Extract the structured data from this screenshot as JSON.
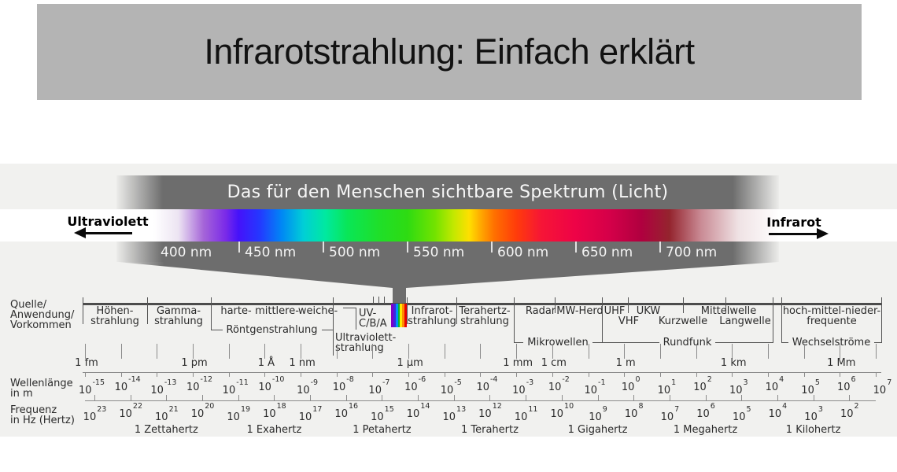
{
  "title": "Infrarotstrahlung: Einfach erklärt",
  "visible_spectrum": {
    "banner": "Das für den Menschen sichtbare Spektrum (Licht)",
    "uv_label": "Ultraviolett",
    "ir_label": "Infrarot",
    "nm_labels": [
      "400 nm",
      "450 nm",
      "500 nm",
      "550 nm",
      "600 nm",
      "650 nm",
      "700 nm"
    ]
  },
  "axis": {
    "side_label": [
      "Quelle/",
      "Anwendung/",
      "Vorkommen"
    ],
    "blocks": {
      "hoehen": [
        "Höhen-",
        "strahlung"
      ],
      "gamma": [
        "Gamma-",
        "strahlung"
      ],
      "roentgen_types": [
        "harte-",
        "mittlere-",
        "weiche-"
      ],
      "roentgen_bracket": "Röntgenstrahlung",
      "uv_short": [
        "UV-",
        "C/B/A"
      ],
      "uv_long": [
        "Ultraviolett-",
        "strahlung"
      ],
      "infrarot": [
        "Infrarot-",
        "strahlung"
      ],
      "terahertz": [
        "Terahertz-",
        "strahlung"
      ],
      "mikro_row": [
        "Radar",
        "MW-Herd"
      ],
      "mikro_bracket": "Mikrowellen",
      "funk_row1": [
        "UHF",
        "UKW",
        "Mittelwelle"
      ],
      "funk_row2": [
        "VHF",
        "Kurzwelle",
        "Langwelle"
      ],
      "funk_bracket": "Rundfunk",
      "nieder": [
        "hoch-mittel-nieder-",
        "frequente"
      ],
      "nieder_bracket": "Wechselströme"
    }
  },
  "scales": {
    "wavelength_side_label": [
      "Wellenlänge",
      "in m"
    ],
    "frequency_side_label": [
      "Frequenz",
      "in Hz (Hertz)"
    ],
    "power_base": "10",
    "wavelength_exponents": [
      -15,
      -14,
      -13,
      -12,
      -11,
      -10,
      -9,
      -8,
      -7,
      -6,
      -5,
      -4,
      -3,
      -2,
      -1,
      0,
      1,
      2,
      3,
      4,
      5,
      6,
      7
    ],
    "frequency_exponents": [
      23,
      22,
      21,
      20,
      19,
      18,
      17,
      16,
      15,
      14,
      13,
      12,
      11,
      10,
      9,
      8,
      7,
      6,
      5,
      4,
      3,
      2
    ],
    "named_wavelengths": [
      {
        "label": "1 fm",
        "exp": -15
      },
      {
        "label": "1 pm",
        "exp": -12
      },
      {
        "label": "1 Å",
        "exp": -10
      },
      {
        "label": "1 nm",
        "exp": -9
      },
      {
        "label": "1 µm",
        "exp": -6
      },
      {
        "label": "1 mm",
        "exp": -3
      },
      {
        "label": "1 cm",
        "exp": -2
      },
      {
        "label": "1 m",
        "exp": 0
      },
      {
        "label": "1 km",
        "exp": 3
      },
      {
        "label": "1 Mm",
        "exp": 6
      }
    ],
    "named_frequencies": [
      {
        "label": "1 Zettahertz",
        "exp": 21
      },
      {
        "label": "1 Exahertz",
        "exp": 18
      },
      {
        "label": "1 Petahertz",
        "exp": 15
      },
      {
        "label": "1 Terahertz",
        "exp": 12
      },
      {
        "label": "1 Gigahertz",
        "exp": 9
      },
      {
        "label": "1 Megahertz",
        "exp": 6
      },
      {
        "label": "1 Kilohertz",
        "exp": 3
      }
    ]
  },
  "colors": {
    "title_banner_bg": "#b4b4b4",
    "diagram_bg": "#f1f1ef",
    "band_gray": "#6d6d6d",
    "axis_line": "#4c4c4c",
    "text": "#2b2b2b",
    "spectrum_stripe_colors": [
      "#8000c8",
      "#3c28e0",
      "#0090ff",
      "#00b43c",
      "#ffe600",
      "#ff8c00",
      "#e60000"
    ]
  }
}
